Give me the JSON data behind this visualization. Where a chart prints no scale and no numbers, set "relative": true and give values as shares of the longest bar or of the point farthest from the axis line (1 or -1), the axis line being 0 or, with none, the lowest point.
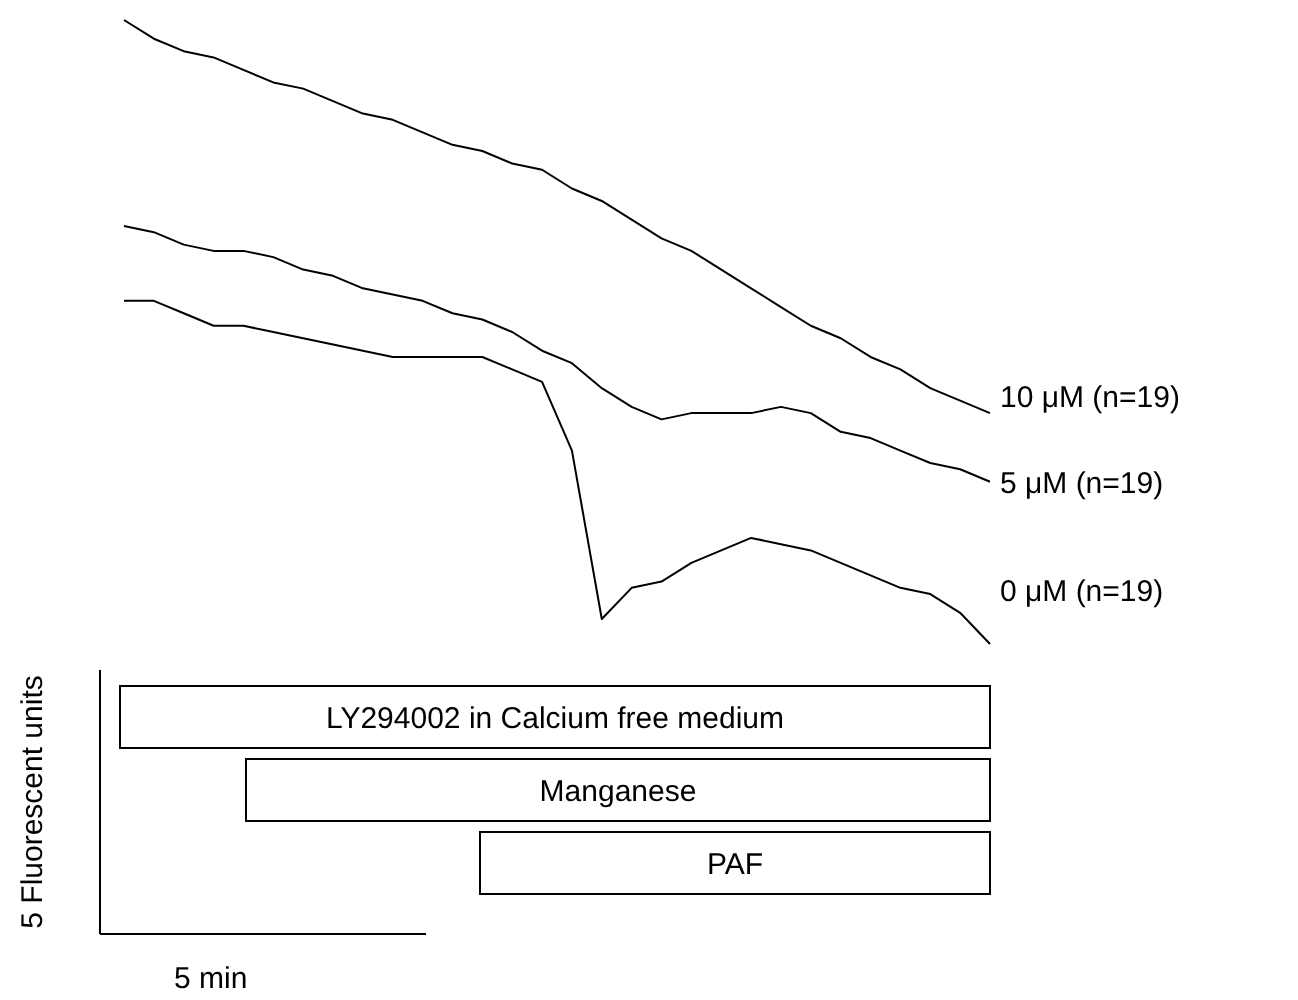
{
  "chart_data": {
    "type": "line",
    "relative": true,
    "ylabel": "5 Fluorescent units",
    "legend": false,
    "line_style": "solid",
    "categories": [
      null,
      null,
      null,
      null,
      null,
      null,
      null,
      null,
      null,
      null,
      null,
      null,
      null,
      null,
      null,
      null,
      null,
      null,
      null,
      null,
      null,
      null,
      null,
      null,
      null,
      null,
      null,
      null,
      null,
      null
    ],
    "series": [
      {
        "name": "10 μM (n=19)",
        "color": "#000000",
        "values": [
          1.0,
          0.97,
          0.95,
          0.94,
          0.92,
          0.9,
          0.89,
          0.87,
          0.85,
          0.84,
          0.82,
          0.8,
          0.79,
          0.77,
          0.76,
          0.73,
          0.71,
          0.68,
          0.65,
          0.63,
          0.6,
          0.57,
          0.54,
          0.51,
          0.49,
          0.46,
          0.44,
          0.41,
          0.39,
          0.37
        ]
      },
      {
        "name": "5 μM (n=19)",
        "color": "#000000",
        "values": [
          0.67,
          0.66,
          0.64,
          0.63,
          0.63,
          0.62,
          0.6,
          0.59,
          0.57,
          0.56,
          0.55,
          0.53,
          0.52,
          0.5,
          0.47,
          0.45,
          0.41,
          0.38,
          0.36,
          0.37,
          0.37,
          0.37,
          0.38,
          0.37,
          0.34,
          0.33,
          0.31,
          0.29,
          0.28,
          0.26
        ]
      },
      {
        "name": "0 μM (n=19)",
        "color": "#000000",
        "values": [
          0.55,
          0.55,
          0.53,
          0.51,
          0.51,
          0.5,
          0.49,
          0.48,
          0.47,
          0.46,
          0.46,
          0.46,
          0.46,
          0.44,
          0.42,
          0.31,
          0.04,
          0.09,
          0.1,
          0.13,
          0.15,
          0.17,
          0.16,
          0.15,
          0.13,
          0.11,
          0.09,
          0.08,
          0.05,
          0
        ]
      }
    ],
    "annotations": [
      "LY294002 in Calcium free medium",
      "Manganese",
      "PAF",
      "5 min"
    ]
  }
}
